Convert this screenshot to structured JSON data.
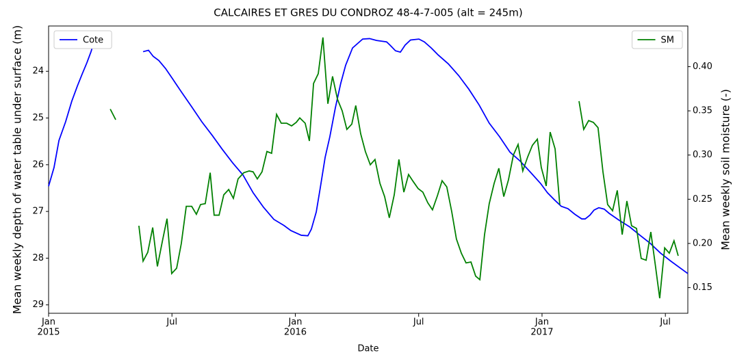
{
  "chart_data": {
    "type": "line",
    "title": "CALCAIRES ET GRES DU CONDROZ 48-4-7-005 (alt = 245m)",
    "xlabel": "Date",
    "ylabel": "Mean weekly depth of water table under surface (m)",
    "y2label": "Mean weekly soil moisture (-)",
    "xlim": [
      2015.0,
      2017.591
    ],
    "xticks": [
      {
        "value": 2015.0,
        "label": "Jan"
      },
      {
        "value": 2015.5,
        "label": "Jul"
      },
      {
        "value": 2016.0,
        "label": "Jan"
      },
      {
        "value": 2016.5,
        "label": "Jul"
      },
      {
        "value": 2017.0,
        "label": "Jan"
      },
      {
        "value": 2017.5,
        "label": "Jul"
      }
    ],
    "xtick_years": [
      2015,
      2016,
      2017
    ],
    "ylim": [
      29.18,
      23.03
    ],
    "yticks": [
      24,
      25,
      26,
      27,
      28,
      29
    ],
    "y2lim": [
      0.121,
      0.446
    ],
    "y2ticks": [
      0.15,
      {
        "value": 0.2,
        "label": "0.20"
      },
      0.25,
      {
        "value": 0.3,
        "label": "0.30"
      },
      0.35,
      {
        "value": 0.4,
        "label": "0.40"
      }
    ],
    "series": [
      {
        "name": "Cote",
        "color": "#0000ff",
        "axis": "y",
        "legend": "upper left",
        "x": [
          2015.0,
          2015.022,
          2015.042,
          2015.069,
          2015.094,
          2015.117,
          2015.136,
          2015.155,
          2015.172,
          2015.183,
          null,
          2015.383,
          2015.405,
          2015.424,
          2015.447,
          2015.474,
          2015.505,
          2015.538,
          2015.58,
          2015.621,
          2015.663,
          2015.704,
          2015.746,
          2015.788,
          2015.829,
          2015.871,
          2015.913,
          2015.954,
          2015.982,
          2016.024,
          2016.051,
          2016.065,
          2016.085,
          2016.101,
          2016.121,
          2016.14,
          2016.162,
          2016.184,
          2016.204,
          2016.232,
          2016.273,
          2016.301,
          2016.329,
          2016.37,
          2016.384,
          2016.406,
          2016.426,
          2016.445,
          2016.467,
          2016.501,
          2016.523,
          2016.551,
          2016.579,
          2016.62,
          2016.662,
          2016.703,
          2016.745,
          2016.786,
          2016.828,
          2016.87,
          2016.911,
          2016.953,
          2016.994,
          2017.022,
          2017.05,
          2017.078,
          2017.105,
          2017.133,
          2017.161,
          2017.175,
          2017.194,
          2017.211,
          2017.23,
          2017.252,
          2017.272,
          2017.313,
          2017.355,
          2017.397,
          2017.438,
          2017.48,
          2017.521,
          2017.591
        ],
        "values": [
          26.46,
          26.06,
          25.48,
          25.08,
          24.64,
          24.31,
          24.06,
          23.82,
          23.58,
          23.39,
          null,
          23.58,
          23.55,
          23.68,
          23.77,
          23.94,
          24.18,
          24.44,
          24.76,
          25.08,
          25.37,
          25.67,
          25.96,
          26.22,
          26.6,
          26.91,
          27.17,
          27.3,
          27.41,
          27.51,
          27.52,
          27.38,
          27.01,
          26.5,
          25.84,
          25.4,
          24.79,
          24.26,
          23.87,
          23.5,
          23.31,
          23.3,
          23.34,
          23.37,
          23.44,
          23.56,
          23.59,
          23.44,
          23.33,
          23.31,
          23.37,
          23.5,
          23.65,
          23.84,
          24.09,
          24.38,
          24.72,
          25.11,
          25.4,
          25.73,
          25.92,
          26.16,
          26.4,
          26.6,
          26.75,
          26.89,
          26.94,
          27.06,
          27.16,
          27.16,
          27.08,
          26.97,
          26.92,
          26.95,
          27.04,
          27.19,
          27.33,
          27.51,
          27.68,
          27.89,
          28.06,
          28.33
        ]
      },
      {
        "name": "SM",
        "color": "#008000",
        "axis": "y2",
        "legend": "upper right",
        "x": [
          2015.25,
          2015.272,
          null,
          2015.366,
          2015.383,
          2015.402,
          2015.422,
          2015.441,
          2015.463,
          2015.48,
          2015.499,
          2015.519,
          2015.538,
          2015.558,
          2015.58,
          2015.599,
          2015.616,
          2015.635,
          2015.655,
          2015.671,
          2015.691,
          2015.71,
          2015.73,
          2015.749,
          2015.768,
          2015.791,
          2015.813,
          2015.829,
          2015.846,
          2015.865,
          2015.885,
          2015.904,
          2015.924,
          2015.943,
          2015.965,
          2015.985,
          2016.004,
          2016.018,
          2016.04,
          2016.057,
          2016.074,
          2016.093,
          2016.112,
          2016.132,
          2016.151,
          2016.171,
          2016.19,
          2016.209,
          2016.229,
          2016.245,
          2016.265,
          2016.284,
          2016.304,
          2016.323,
          2016.343,
          2016.362,
          2016.381,
          2016.401,
          2016.42,
          2016.44,
          2016.459,
          2016.478,
          2016.498,
          2016.517,
          2016.537,
          2016.556,
          2016.576,
          2016.595,
          2016.614,
          2016.634,
          2016.653,
          2016.673,
          2016.692,
          2016.712,
          2016.731,
          2016.748,
          2016.767,
          2016.786,
          2016.806,
          2016.825,
          2016.845,
          2016.864,
          2016.884,
          2016.903,
          2016.922,
          2016.942,
          2016.961,
          2016.981,
          2016.997,
          2017.017,
          2017.033,
          2017.053,
          2017.072,
          null,
          2017.15,
          2017.169,
          2017.189,
          2017.208,
          2017.227,
          2017.247,
          2017.266,
          2017.286,
          2017.305,
          2017.325,
          2017.344,
          2017.363,
          2017.383,
          2017.402,
          2017.422,
          2017.441,
          2017.46,
          2017.477,
          2017.497,
          2017.516,
          2017.535,
          2017.552
        ],
        "values": [
          0.352,
          0.34,
          null,
          0.22,
          0.18,
          0.19,
          0.218,
          0.174,
          0.205,
          0.228,
          0.166,
          0.172,
          0.2,
          0.242,
          0.242,
          0.233,
          0.244,
          0.245,
          0.28,
          0.232,
          0.232,
          0.255,
          0.261,
          0.251,
          0.273,
          0.28,
          0.282,
          0.281,
          0.273,
          0.281,
          0.304,
          0.302,
          0.346,
          0.336,
          0.336,
          0.333,
          0.337,
          0.342,
          0.336,
          0.316,
          0.381,
          0.392,
          0.433,
          0.358,
          0.389,
          0.363,
          0.35,
          0.329,
          0.335,
          0.356,
          0.324,
          0.304,
          0.289,
          0.295,
          0.268,
          0.253,
          0.229,
          0.255,
          0.295,
          0.258,
          0.278,
          0.27,
          0.262,
          0.258,
          0.246,
          0.238,
          0.254,
          0.271,
          0.264,
          0.236,
          0.205,
          0.189,
          0.178,
          0.179,
          0.163,
          0.159,
          0.21,
          0.245,
          0.268,
          0.285,
          0.253,
          0.272,
          0.3,
          0.312,
          0.282,
          0.298,
          0.311,
          0.318,
          0.286,
          0.265,
          0.326,
          0.307,
          0.244,
          null,
          0.361,
          0.329,
          0.339,
          0.337,
          0.331,
          0.281,
          0.244,
          0.237,
          0.26,
          0.21,
          0.248,
          0.22,
          0.217,
          0.183,
          0.181,
          0.213,
          0.174,
          0.138,
          0.195,
          0.189,
          0.203,
          0.186
        ]
      }
    ]
  }
}
